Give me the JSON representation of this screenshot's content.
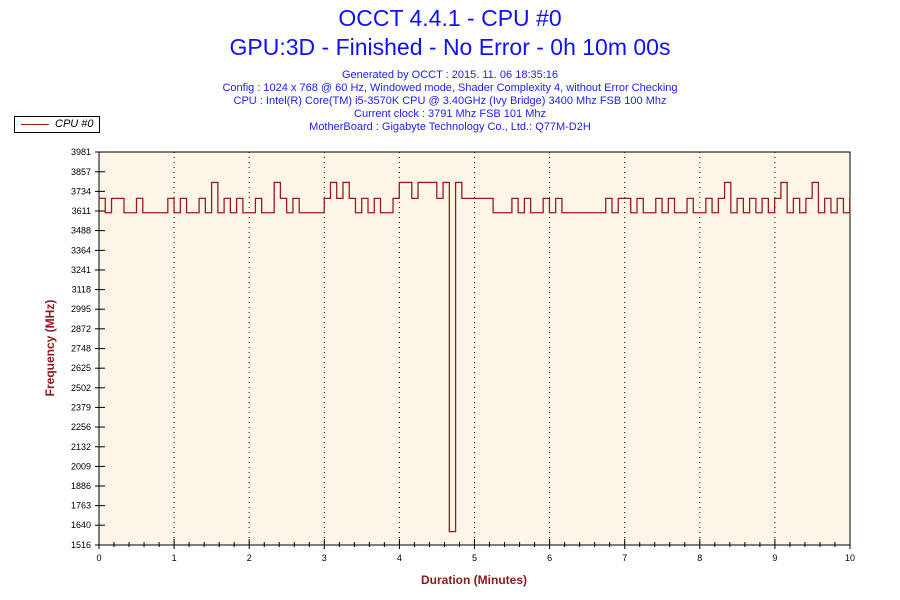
{
  "header": {
    "title": "OCCT 4.4.1 - CPU #0",
    "subtitle": "GPU:3D - Finished - No Error - 0h 10m 00s",
    "info": [
      "Generated by OCCT : 2015. 11. 06 18:35:16",
      "Config : 1024 x 768 @ 60 Hz, Windowed mode, Shader Complexity 4, without Error Checking",
      "CPU : Intel(R) Core(TM) i5-3570K CPU @ 3.40GHz (Ivy Bridge) 3400 Mhz FSB 100 Mhz",
      "Current clock : 3791 Mhz FSB 101 Mhz",
      "MotherBoard : Gigabyte Technology Co., Ltd.: Q77M-D2H"
    ]
  },
  "colors": {
    "line": "#9b1c1c",
    "plot_bg": "#fdf6e8",
    "title": "#1010ff",
    "axis_label": "#8b1a1a"
  },
  "chart_data": {
    "type": "line",
    "xlabel": "Duration (Minutes)",
    "ylabel": "Frequency (MHz)",
    "xlim": [
      0,
      10
    ],
    "ylim": [
      1516,
      3981
    ],
    "xticks": [
      "0",
      "1",
      "2",
      "3",
      "4",
      "5",
      "6",
      "7",
      "8",
      "9",
      "10"
    ],
    "yticks": [
      "3981",
      "3857",
      "3734",
      "3611",
      "3488",
      "3364",
      "3241",
      "3118",
      "2995",
      "2872",
      "2748",
      "2625",
      "2502",
      "2379",
      "2256",
      "2132",
      "2009",
      "1886",
      "1763",
      "1640",
      "1516"
    ],
    "legend": "CPU #0",
    "legend_position": "top-left",
    "grid": true,
    "series": [
      {
        "name": "CPU #0",
        "x_step_minutes": 0.0833,
        "values": [
          3690,
          3600,
          3690,
          3690,
          3600,
          3600,
          3690,
          3600,
          3600,
          3600,
          3600,
          3690,
          3600,
          3690,
          3600,
          3600,
          3690,
          3600,
          3790,
          3600,
          3690,
          3600,
          3690,
          3600,
          3600,
          3690,
          3600,
          3600,
          3790,
          3690,
          3600,
          3690,
          3600,
          3600,
          3600,
          3600,
          3690,
          3790,
          3690,
          3790,
          3690,
          3600,
          3690,
          3600,
          3690,
          3600,
          3600,
          3690,
          3790,
          3790,
          3690,
          3790,
          3790,
          3790,
          3690,
          3790,
          1600,
          3790,
          3690,
          3690,
          3690,
          3690,
          3690,
          3600,
          3600,
          3600,
          3690,
          3600,
          3690,
          3600,
          3600,
          3690,
          3600,
          3690,
          3600,
          3600,
          3600,
          3600,
          3600,
          3600,
          3600,
          3690,
          3600,
          3690,
          3690,
          3600,
          3690,
          3600,
          3600,
          3690,
          3600,
          3690,
          3600,
          3600,
          3690,
          3600,
          3600,
          3690,
          3600,
          3690,
          3790,
          3600,
          3690,
          3600,
          3690,
          3600,
          3690,
          3600,
          3690,
          3790,
          3600,
          3690,
          3600,
          3690,
          3790,
          3600,
          3690,
          3600,
          3690,
          3600,
          3690
        ]
      }
    ]
  }
}
